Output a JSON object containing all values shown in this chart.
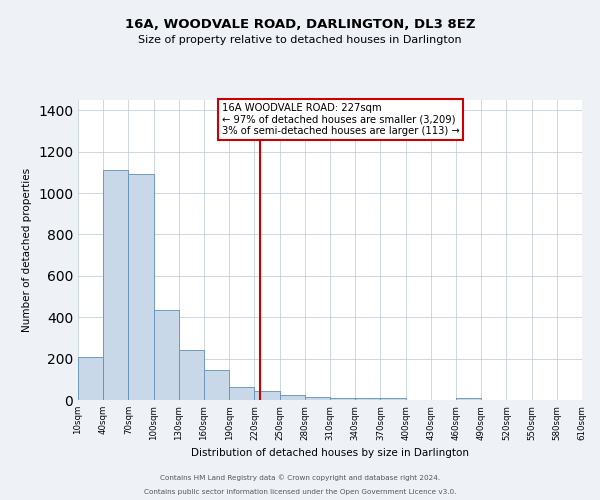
{
  "title": "16A, WOODVALE ROAD, DARLINGTON, DL3 8EZ",
  "subtitle": "Size of property relative to detached houses in Darlington",
  "xlabel": "Distribution of detached houses by size in Darlington",
  "ylabel": "Number of detached properties",
  "bar_color": "#c8d8e8",
  "bar_edge_color": "#6090b8",
  "vline_x": 227,
  "vline_color": "#cc0000",
  "annotation_lines": [
    "16A WOODVALE ROAD: 227sqm",
    "← 97% of detached houses are smaller (3,209)",
    "3% of semi-detached houses are larger (113) →"
  ],
  "annotation_box_color": "#ffffff",
  "annotation_box_edge_color": "#cc0000",
  "bin_edges": [
    10,
    40,
    70,
    100,
    130,
    160,
    190,
    220,
    250,
    280,
    310,
    340,
    370,
    400,
    430,
    460,
    490,
    520,
    550,
    580,
    610
  ],
  "bin_heights": [
    210,
    1110,
    1090,
    435,
    240,
    145,
    65,
    45,
    25,
    15,
    8,
    8,
    8,
    0,
    0,
    8,
    0,
    0,
    0,
    0
  ],
  "ylim": [
    0,
    1450
  ],
  "xlim": [
    10,
    610
  ],
  "tick_labels": [
    "10sqm",
    "40sqm",
    "70sqm",
    "100sqm",
    "130sqm",
    "160sqm",
    "190sqm",
    "220sqm",
    "250sqm",
    "280sqm",
    "310sqm",
    "340sqm",
    "370sqm",
    "400sqm",
    "430sqm",
    "460sqm",
    "490sqm",
    "520sqm",
    "550sqm",
    "580sqm",
    "610sqm"
  ],
  "tick_positions": [
    10,
    40,
    70,
    100,
    130,
    160,
    190,
    220,
    250,
    280,
    310,
    340,
    370,
    400,
    430,
    460,
    490,
    520,
    550,
    580,
    610
  ],
  "footer_lines": [
    "Contains HM Land Registry data © Crown copyright and database right 2024.",
    "Contains public sector information licensed under the Open Government Licence v3.0."
  ],
  "background_color": "#eef2f7",
  "plot_bg_color": "#ffffff",
  "grid_color": "#b8c8d8"
}
